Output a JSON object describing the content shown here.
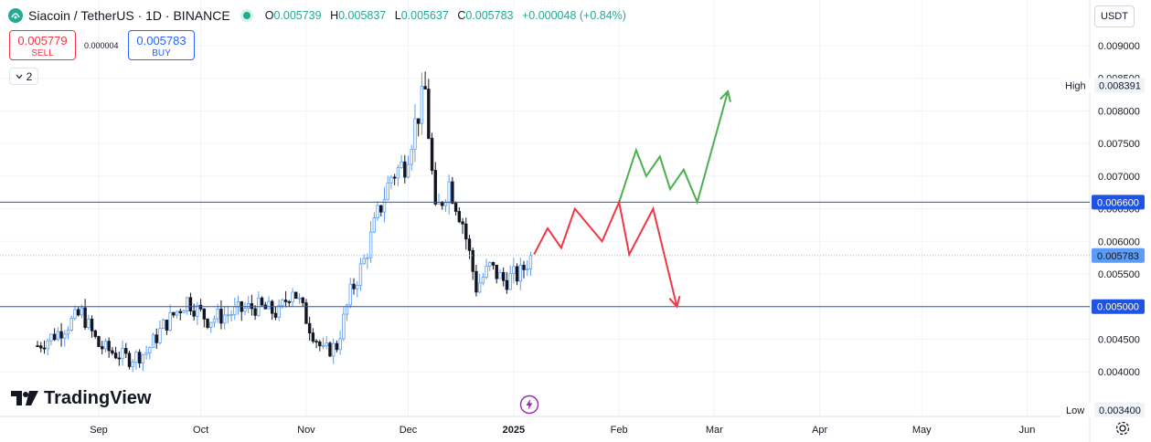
{
  "header": {
    "symbol": "Siacoin / TetherUS · 1D · BINANCE",
    "ohlc": {
      "o_label": "O",
      "o": "0.005739",
      "h_label": "H",
      "h": "0.005837",
      "l_label": "L",
      "l": "0.005637",
      "c_label": "C",
      "c": "0.005783",
      "change": "+0.000048 (+0.84%)"
    }
  },
  "trade": {
    "sell_price": "0.005779",
    "sell_label": "SELL",
    "buy_price": "0.005783",
    "buy_label": "BUY",
    "spread": "0.000004"
  },
  "indicators_count": "2",
  "currency": "USDT",
  "branding": "TradingView",
  "colors": {
    "up": "#5b9cf6",
    "down": "#131722",
    "hline": "#1e53e5",
    "bullish_path": "#4caf50",
    "bearish_path": "#f23645",
    "last_price": "#5b9cf6"
  },
  "chart_data": {
    "type": "candlestick",
    "ylim": [
      0.0034,
      0.0093
    ],
    "y_ticks": [
      "0.004000",
      "0.004500",
      "0.005000",
      "0.005500",
      "0.006000",
      "0.006500",
      "0.007000",
      "0.007500",
      "0.008000",
      "0.008500",
      "0.009000"
    ],
    "x_ticks": [
      "Sep",
      "Oct",
      "Nov",
      "Dec",
      "2025",
      "Feb",
      "Mar",
      "Apr",
      "May",
      "Jun"
    ],
    "horizontal_lines": [
      {
        "value": 0.0066,
        "label": "0.006600"
      },
      {
        "value": 0.005,
        "label": "0.005000"
      }
    ],
    "last_price": {
      "value": 0.005783,
      "label": "0.005783"
    },
    "high": {
      "label": "High",
      "value": "0.008391"
    },
    "low": {
      "label": "Low",
      "value": "0.003400"
    },
    "candles_close_path": [
      [
        "2024-08-14",
        0.0044
      ],
      [
        "2024-08-20",
        0.0046
      ],
      [
        "2024-08-27",
        0.0049
      ],
      [
        "2024-09-01",
        0.0044
      ],
      [
        "2024-09-05",
        0.0043
      ],
      [
        "2024-09-10",
        0.0042
      ],
      [
        "2024-09-15",
        0.0043
      ],
      [
        "2024-09-20",
        0.0047
      ],
      [
        "2024-09-27",
        0.0051
      ],
      [
        "2024-10-03",
        0.0048
      ],
      [
        "2024-10-10",
        0.0049
      ],
      [
        "2024-10-17",
        0.005
      ],
      [
        "2024-10-24",
        0.0049
      ],
      [
        "2024-10-28",
        0.0053
      ],
      [
        "2024-11-02",
        0.0047
      ],
      [
        "2024-11-06",
        0.0043
      ],
      [
        "2024-11-10",
        0.0044
      ],
      [
        "2024-11-14",
        0.0052
      ],
      [
        "2024-11-18",
        0.0057
      ],
      [
        "2024-11-22",
        0.0064
      ],
      [
        "2024-11-26",
        0.007
      ],
      [
        "2024-11-30",
        0.0072
      ],
      [
        "2024-12-03",
        0.0078
      ],
      [
        "2024-12-06",
        0.0083
      ],
      [
        "2024-12-09",
        0.0064
      ],
      [
        "2024-12-13",
        0.0069
      ],
      [
        "2024-12-17",
        0.0063
      ],
      [
        "2024-12-21",
        0.0053
      ],
      [
        "2024-12-25",
        0.0056
      ],
      [
        "2024-12-29",
        0.0054
      ],
      [
        "2025-01-03",
        0.0055
      ],
      [
        "2025-01-06",
        0.005783
      ]
    ],
    "projections": [
      {
        "name": "",
        "color": "#4caf50",
        "points": [
          [
            "2025-02-01",
            0.0066
          ],
          [
            "2025-02-06",
            0.0074
          ],
          [
            "2025-02-09",
            0.007
          ],
          [
            "2025-02-13",
            0.0073
          ],
          [
            "2025-02-16",
            0.0068
          ],
          [
            "2025-02-20",
            0.0071
          ],
          [
            "2025-02-24",
            0.0066
          ],
          [
            "2025-03-05",
            0.0083
          ]
        ]
      },
      {
        "name": "",
        "color": "#f23645",
        "points": [
          [
            "2025-01-07",
            0.0058
          ],
          [
            "2025-01-11",
            0.0062
          ],
          [
            "2025-01-15",
            0.0059
          ],
          [
            "2025-01-19",
            0.0065
          ],
          [
            "2025-01-27",
            0.006
          ],
          [
            "2025-02-01",
            0.0066
          ],
          [
            "2025-02-04",
            0.0058
          ],
          [
            "2025-02-11",
            0.0065
          ],
          [
            "2025-02-18",
            0.005
          ]
        ]
      }
    ]
  }
}
